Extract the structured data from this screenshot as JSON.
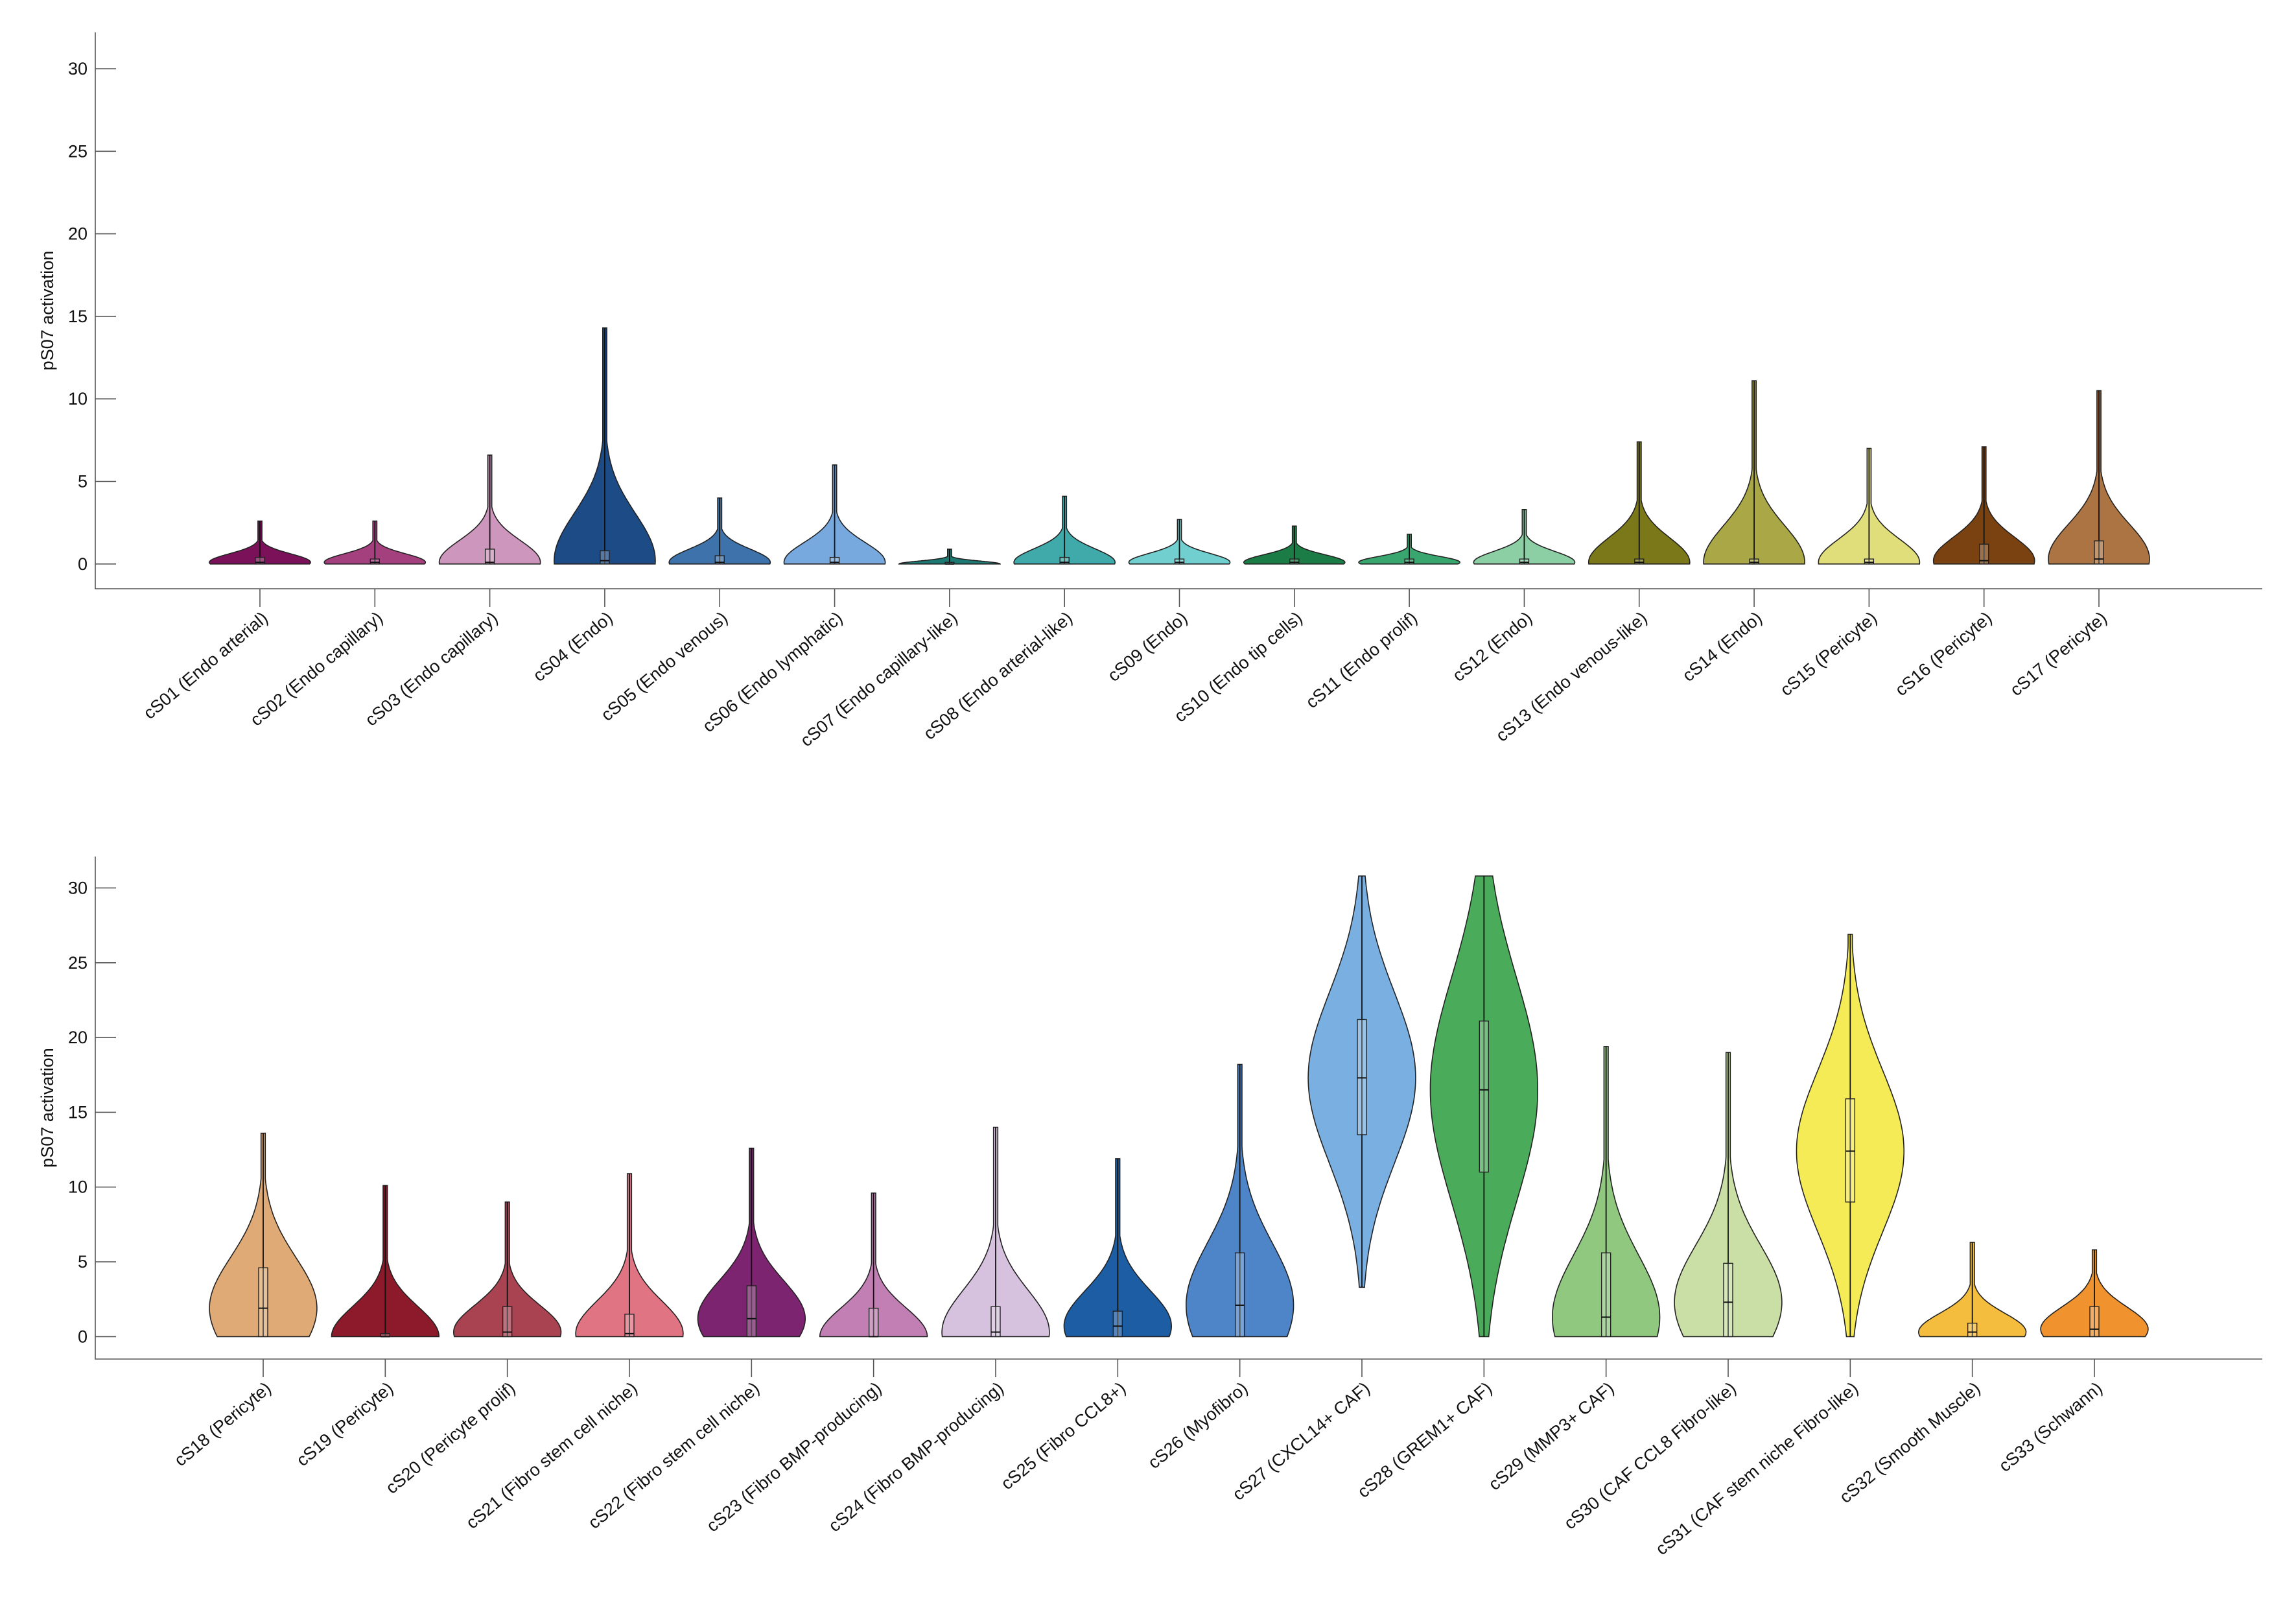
{
  "chart_data": [
    {
      "type": "violin",
      "ylabel": "pS07 activation",
      "ylim": [
        -1.5,
        32.2
      ],
      "yticks": [
        0,
        5,
        10,
        15,
        20,
        25,
        30
      ],
      "violins": [
        {
          "name": "cS01 (Endo arterial)",
          "color": "#7b1259",
          "min": 0,
          "q1": 0,
          "median": 0.1,
          "q3": 0.4,
          "max": 2.6
        },
        {
          "name": "cS02 (Endo capillary)",
          "color": "#a5407f",
          "min": 0,
          "q1": 0,
          "median": 0.1,
          "q3": 0.3,
          "max": 2.6
        },
        {
          "name": "cS03 (Endo capillary)",
          "color": "#cd97bd",
          "min": 0,
          "q1": 0,
          "median": 0.1,
          "q3": 0.9,
          "max": 6.6
        },
        {
          "name": "cS04 (Endo)",
          "color": "#1c4b86",
          "min": 0,
          "q1": 0,
          "median": 0.2,
          "q3": 0.8,
          "max": 14.3
        },
        {
          "name": "cS05 (Endo venous)",
          "color": "#3e72aa",
          "min": 0,
          "q1": 0,
          "median": 0.1,
          "q3": 0.5,
          "max": 4.0
        },
        {
          "name": "cS06 (Endo lymphatic)",
          "color": "#78a9de",
          "min": 0,
          "q1": 0,
          "median": 0.1,
          "q3": 0.4,
          "max": 6.0
        },
        {
          "name": "cS07 (Endo capillary-like)",
          "color": "#1c7a72",
          "min": 0,
          "q1": 0,
          "median": 0,
          "q3": 0.1,
          "max": 0.9
        },
        {
          "name": "cS08 (Endo arterial-like)",
          "color": "#40a9a9",
          "min": 0,
          "q1": 0,
          "median": 0.1,
          "q3": 0.4,
          "max": 4.1
        },
        {
          "name": "cS09 (Endo)",
          "color": "#71cfcf",
          "min": 0,
          "q1": 0,
          "median": 0.1,
          "q3": 0.3,
          "max": 2.7
        },
        {
          "name": "cS10 (Endo tip cells)",
          "color": "#1b7d45",
          "min": 0,
          "q1": 0,
          "median": 0.1,
          "q3": 0.3,
          "max": 2.3
        },
        {
          "name": "cS11 (Endo prolif)",
          "color": "#3aa66f",
          "min": 0,
          "q1": 0,
          "median": 0.1,
          "q3": 0.3,
          "max": 1.8
        },
        {
          "name": "cS12 (Endo)",
          "color": "#8ccfa5",
          "min": 0,
          "q1": 0,
          "median": 0.1,
          "q3": 0.3,
          "max": 3.3
        },
        {
          "name": "cS13 (Endo venous-like)",
          "color": "#7a7818",
          "min": 0,
          "q1": 0,
          "median": 0.1,
          "q3": 0.3,
          "max": 7.4
        },
        {
          "name": "cS14 (Endo)",
          "color": "#aaa846",
          "min": 0,
          "q1": 0,
          "median": 0.1,
          "q3": 0.3,
          "max": 11.1
        },
        {
          "name": "cS15 (Pericyte)",
          "color": "#e0de7b",
          "min": 0,
          "q1": 0,
          "median": 0.1,
          "q3": 0.3,
          "max": 7.0
        },
        {
          "name": "cS16 (Pericyte)",
          "color": "#7a4211",
          "min": 0,
          "q1": 0,
          "median": 0.2,
          "q3": 1.2,
          "max": 7.1
        },
        {
          "name": "cS17 (Pericyte)",
          "color": "#ad7443",
          "min": 0,
          "q1": 0,
          "median": 0.3,
          "q3": 1.4,
          "max": 10.5
        }
      ]
    },
    {
      "type": "violin",
      "ylabel": "pS07 activation",
      "ylim": [
        -1.5,
        32.1
      ],
      "yticks": [
        0,
        5,
        10,
        15,
        20,
        25,
        30
      ],
      "violins": [
        {
          "name": "cS18 (Pericyte)",
          "color": "#dfaa75",
          "min": 0,
          "q1": 0,
          "median": 1.9,
          "q3": 4.6,
          "max": 13.6
        },
        {
          "name": "cS19 (Pericyte)",
          "color": "#8c1a2b",
          "min": 0,
          "q1": 0,
          "median": 0,
          "q3": 0.2,
          "max": 10.1
        },
        {
          "name": "cS20 (Pericyte prolif)",
          "color": "#a94352",
          "min": 0,
          "q1": 0,
          "median": 0.3,
          "q3": 2.0,
          "max": 9.0
        },
        {
          "name": "cS21 (Fibro stem cell niche)",
          "color": "#e07483",
          "min": 0,
          "q1": 0,
          "median": 0.2,
          "q3": 1.5,
          "max": 10.9
        },
        {
          "name": "cS22 (Fibro stem cell niche)",
          "color": "#7d2471",
          "min": 0,
          "q1": 0,
          "median": 1.2,
          "q3": 3.4,
          "max": 12.6
        },
        {
          "name": "cS23 (Fibro BMP-producing)",
          "color": "#c17fb3",
          "min": 0,
          "q1": 0,
          "median": 0,
          "q3": 1.9,
          "max": 9.6
        },
        {
          "name": "cS24 (Fibro BMP-producing)",
          "color": "#d6c1de",
          "min": 0,
          "q1": 0,
          "median": 0.3,
          "q3": 2.0,
          "max": 14.0
        },
        {
          "name": "cS25 (Fibro CCL8+)",
          "color": "#1c5da4",
          "min": 0,
          "q1": 0,
          "median": 0.7,
          "q3": 1.7,
          "max": 11.9
        },
        {
          "name": "cS26 (Myofibro)",
          "color": "#4e85c9",
          "min": 0,
          "q1": 0,
          "median": 2.1,
          "q3": 5.6,
          "max": 18.2
        },
        {
          "name": "cS27 (CXCL14+ CAF)",
          "color": "#79afe1",
          "min": 3.3,
          "q1": 13.5,
          "median": 17.3,
          "q3": 21.2,
          "max": 30.8
        },
        {
          "name": "cS28 (GREM1+ CAF)",
          "color": "#4aac5a",
          "min": 0,
          "q1": 11.0,
          "median": 16.5,
          "q3": 21.1,
          "max": 30.8
        },
        {
          "name": "cS29 (MMP3+ CAF)",
          "color": "#90c87f",
          "min": 0,
          "q1": 0,
          "median": 1.3,
          "q3": 5.6,
          "max": 19.4
        },
        {
          "name": "cS30 (CAF CCL8 Fibro-like)",
          "color": "#cadfa6",
          "min": 0,
          "q1": 0,
          "median": 2.3,
          "q3": 4.9,
          "max": 19.0
        },
        {
          "name": "cS31 (CAF stem niche Fibro-like)",
          "color": "#f5eb56",
          "min": 0,
          "q1": 9.0,
          "median": 12.4,
          "q3": 15.9,
          "max": 26.9
        },
        {
          "name": "cS32 (Smooth Muscle)",
          "color": "#f4bd3e",
          "min": 0,
          "q1": 0,
          "median": 0.3,
          "q3": 0.9,
          "max": 6.3
        },
        {
          "name": "cS33 (Schwann)",
          "color": "#f0932f",
          "min": 0,
          "q1": 0,
          "median": 0.5,
          "q3": 2.0,
          "max": 5.8
        }
      ]
    }
  ]
}
